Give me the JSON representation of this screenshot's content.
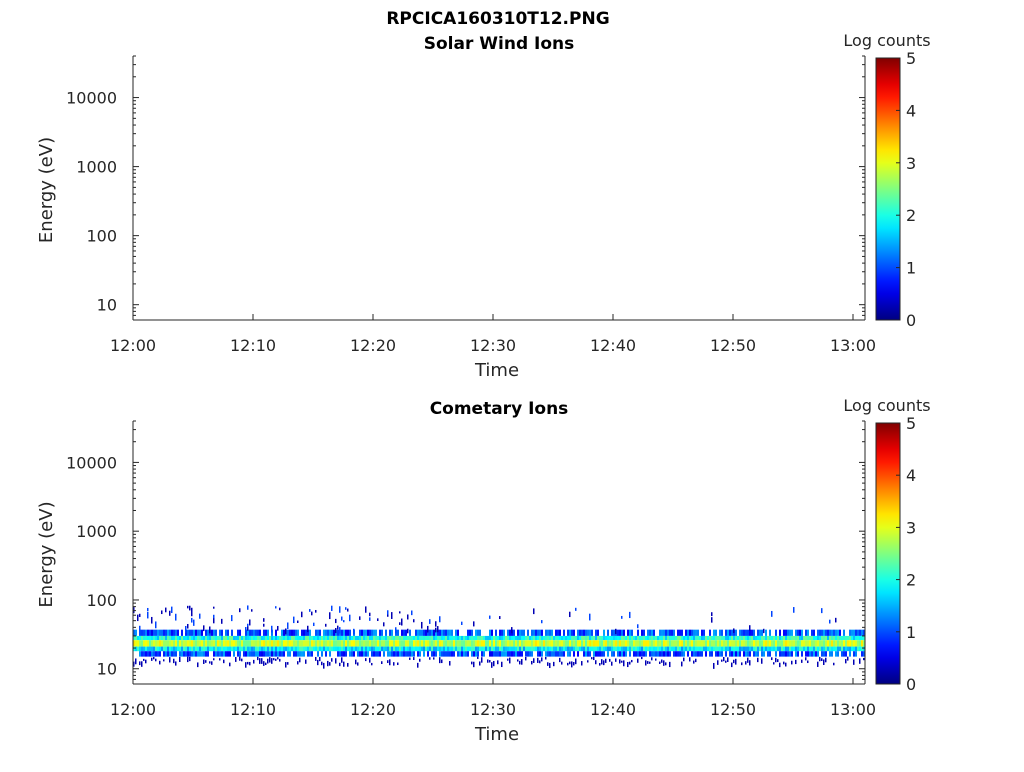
{
  "figure_title": "RPCICA160310T12.PNG",
  "chart_data": [
    {
      "type": "heatmap",
      "title": "Solar Wind Ions",
      "xlabel": "Time",
      "ylabel": "Energy (eV)",
      "yscale": "log",
      "x_ticks": [
        "12:00",
        "12:10",
        "12:20",
        "12:30",
        "12:40",
        "12:50",
        "13:00"
      ],
      "xlim": [
        "12:00",
        "13:01"
      ],
      "y_ticks": [
        10,
        100,
        1000,
        10000
      ],
      "y_tick_labels": [
        "10",
        "100",
        "1000",
        "10000"
      ],
      "ylim": [
        6,
        40000
      ],
      "colorbar": {
        "label": "Log counts",
        "ticks": [
          "0",
          "1",
          "2",
          "3",
          "4",
          "5"
        ],
        "range": [
          0,
          5
        ],
        "colormap": "jet"
      },
      "signal": []
    },
    {
      "type": "heatmap",
      "title": "Cometary Ions",
      "xlabel": "Time",
      "ylabel": "Energy (eV)",
      "yscale": "log",
      "x_ticks": [
        "12:00",
        "12:10",
        "12:20",
        "12:30",
        "12:40",
        "12:50",
        "13:00"
      ],
      "xlim": [
        "12:00",
        "13:01"
      ],
      "y_ticks": [
        10,
        100,
        1000,
        10000
      ],
      "y_tick_labels": [
        "10",
        "100",
        "1000",
        "10000"
      ],
      "ylim": [
        6,
        40000
      ],
      "colorbar": {
        "label": "Log counts",
        "ticks": [
          "0",
          "1",
          "2",
          "3",
          "4",
          "5"
        ],
        "range": [
          0,
          5
        ],
        "colormap": "jet"
      },
      "signal": [
        {
          "energy_min": 30,
          "energy_max": 37,
          "log_counts": 1.0
        },
        {
          "energy_min": 26,
          "energy_max": 30,
          "log_counts": 2.0
        },
        {
          "energy_min": 21,
          "energy_max": 26,
          "log_counts": 2.8
        },
        {
          "energy_min": 18,
          "energy_max": 21,
          "log_counts": 1.8
        },
        {
          "energy_min": 15,
          "energy_max": 18,
          "log_counts": 1.0
        }
      ],
      "sparse_signal": {
        "energy_min": 38,
        "energy_max": 85,
        "log_counts": 0.8,
        "time_start": "12:00",
        "time_end": "12:26"
      }
    }
  ]
}
